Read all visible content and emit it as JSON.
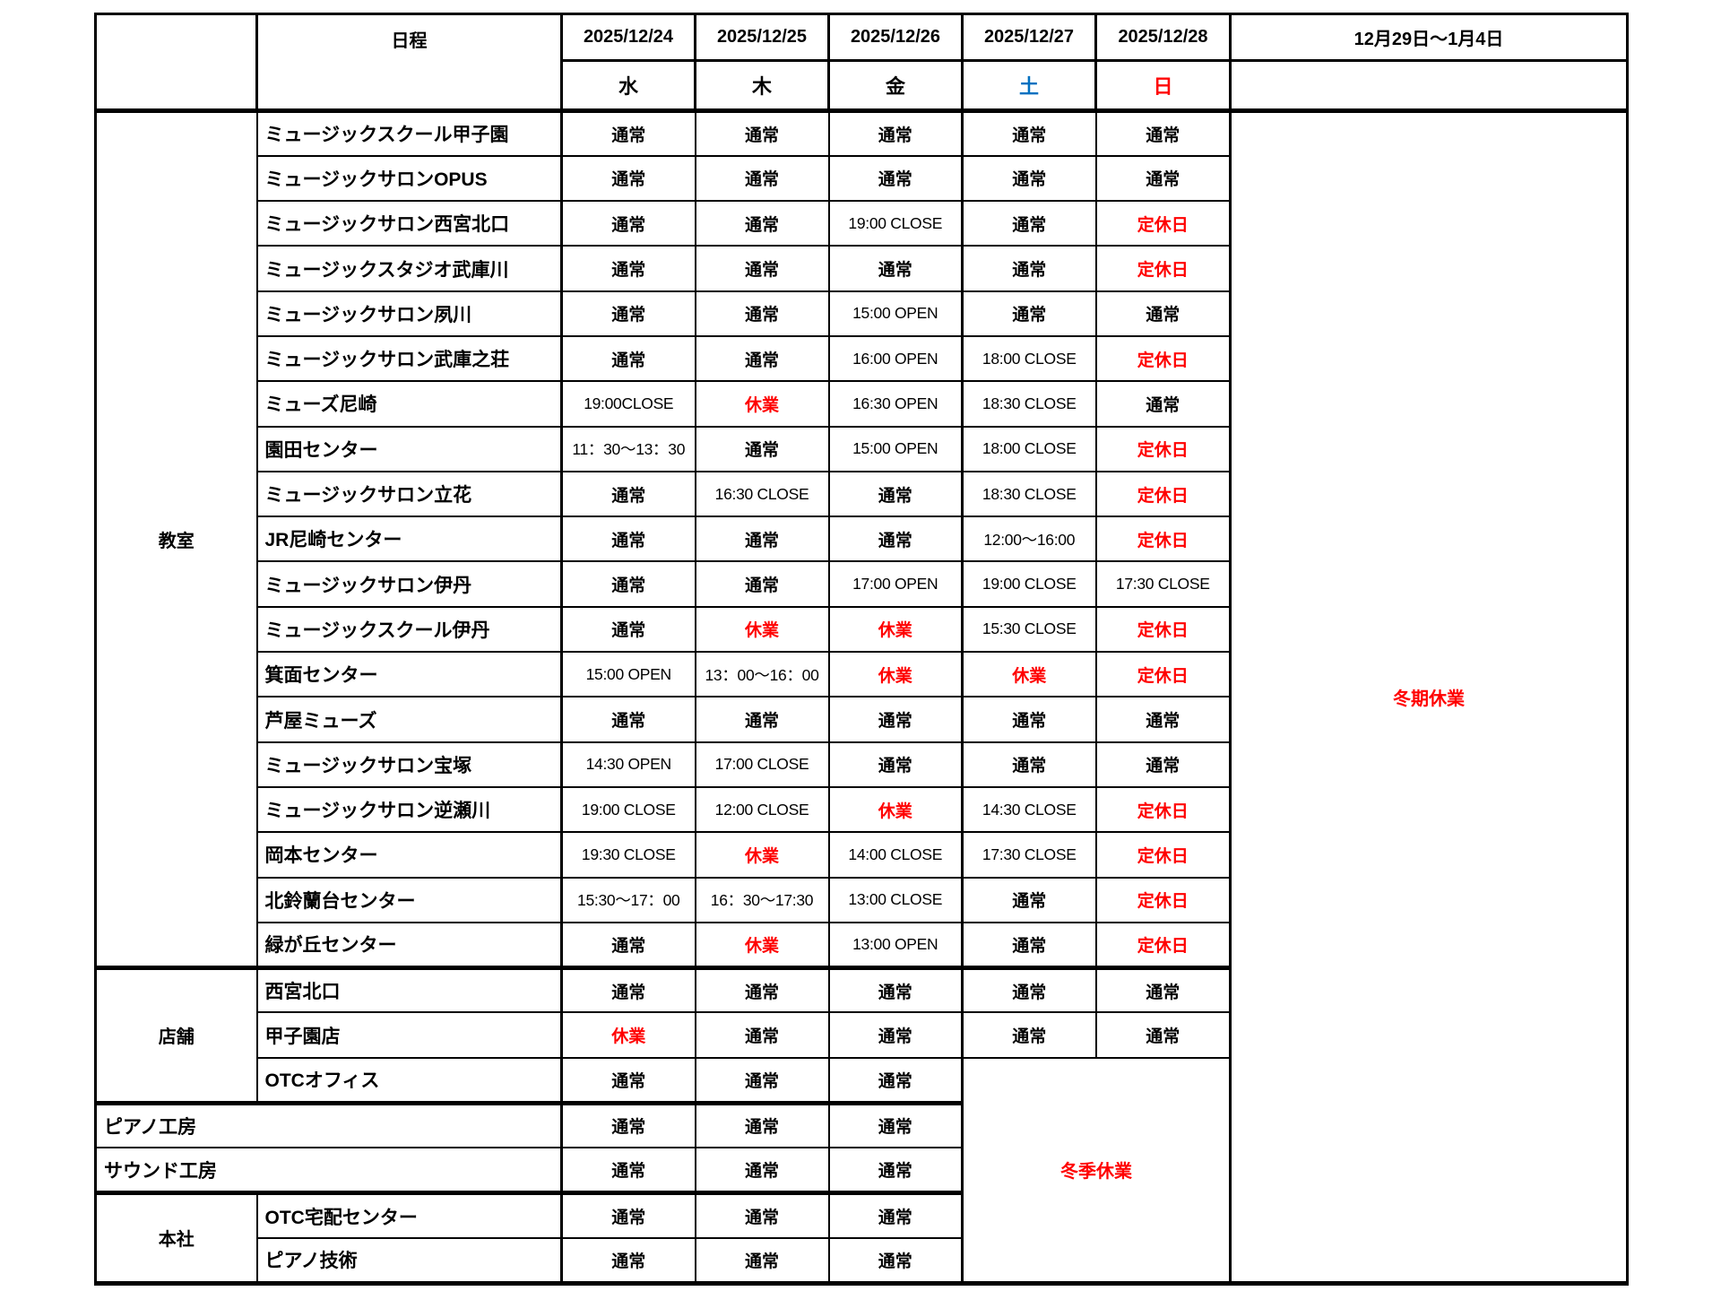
{
  "colors": {
    "closed_red": "#FF0000",
    "saturday_blue": "#0070C0",
    "text_black": "#000000"
  },
  "header": {
    "schedule_label": "日程",
    "dates": [
      {
        "date": "2025/12/24",
        "day": "水",
        "day_color": "#000000"
      },
      {
        "date": "2025/12/25",
        "day": "木",
        "day_color": "#000000"
      },
      {
        "date": "2025/12/26",
        "day": "金",
        "day_color": "#000000"
      },
      {
        "date": "2025/12/27",
        "day": "土",
        "day_color": "#0070C0"
      },
      {
        "date": "2025/12/28",
        "day": "日",
        "day_color": "#FF0000"
      }
    ],
    "period_label": "12月29日～1月4日"
  },
  "period_column_note": {
    "text": "冬期休業",
    "color": "#FF0000"
  },
  "winter_closure_note": {
    "text": "冬季休業",
    "color": "#FF0000"
  },
  "groups": [
    {
      "label": "教室",
      "rows": [
        {
          "name": "ミュージックスクール甲子園",
          "values": [
            {
              "t": "通常"
            },
            {
              "t": "通常"
            },
            {
              "t": "通常"
            },
            {
              "t": "通常"
            },
            {
              "t": "通常"
            }
          ]
        },
        {
          "name": "ミュージックサロンOPUS",
          "values": [
            {
              "t": "通常"
            },
            {
              "t": "通常"
            },
            {
              "t": "通常"
            },
            {
              "t": "通常"
            },
            {
              "t": "通常"
            }
          ]
        },
        {
          "name": "ミュージックサロン西宮北口",
          "values": [
            {
              "t": "通常"
            },
            {
              "t": "通常"
            },
            {
              "t": "19:00 CLOSE"
            },
            {
              "t": "通常"
            },
            {
              "t": "定休日",
              "r": true
            }
          ]
        },
        {
          "name": "ミュージックスタジオ武庫川",
          "values": [
            {
              "t": "通常"
            },
            {
              "t": "通常"
            },
            {
              "t": "通常"
            },
            {
              "t": "通常"
            },
            {
              "t": "定休日",
              "r": true
            }
          ]
        },
        {
          "name": "ミュージックサロン夙川",
          "values": [
            {
              "t": "通常"
            },
            {
              "t": "通常"
            },
            {
              "t": "15:00 OPEN"
            },
            {
              "t": "通常"
            },
            {
              "t": "通常"
            }
          ]
        },
        {
          "name": "ミュージックサロン武庫之荘",
          "values": [
            {
              "t": "通常"
            },
            {
              "t": "通常"
            },
            {
              "t": "16:00 OPEN"
            },
            {
              "t": "18:00 CLOSE"
            },
            {
              "t": "定休日",
              "r": true
            }
          ]
        },
        {
          "name": "ミューズ尼崎",
          "values": [
            {
              "t": "19:00CLOSE"
            },
            {
              "t": "休業",
              "r": true
            },
            {
              "t": "16:30 OPEN"
            },
            {
              "t": "18:30 CLOSE"
            },
            {
              "t": "通常"
            }
          ]
        },
        {
          "name": "園田センター",
          "values": [
            {
              "t": "11：30～13：30"
            },
            {
              "t": "通常"
            },
            {
              "t": "15:00 OPEN"
            },
            {
              "t": "18:00 CLOSE"
            },
            {
              "t": "定休日",
              "r": true
            }
          ]
        },
        {
          "name": "ミュージックサロン立花",
          "values": [
            {
              "t": "通常"
            },
            {
              "t": "16:30 CLOSE"
            },
            {
              "t": "通常"
            },
            {
              "t": "18:30 CLOSE"
            },
            {
              "t": "定休日",
              "r": true
            }
          ]
        },
        {
          "name": "JR尼崎センター",
          "values": [
            {
              "t": "通常"
            },
            {
              "t": "通常"
            },
            {
              "t": "通常"
            },
            {
              "t": "12:00～16:00"
            },
            {
              "t": "定休日",
              "r": true
            }
          ]
        },
        {
          "name": "ミュージックサロン伊丹",
          "values": [
            {
              "t": "通常"
            },
            {
              "t": "通常"
            },
            {
              "t": "17:00 OPEN"
            },
            {
              "t": "19:00 CLOSE"
            },
            {
              "t": "17:30 CLOSE"
            }
          ]
        },
        {
          "name": "ミュージックスクール伊丹",
          "values": [
            {
              "t": "通常"
            },
            {
              "t": "休業",
              "r": true
            },
            {
              "t": "休業",
              "r": true
            },
            {
              "t": "15:30 CLOSE"
            },
            {
              "t": "定休日",
              "r": true
            }
          ]
        },
        {
          "name": "箕面センター",
          "values": [
            {
              "t": "15:00 OPEN"
            },
            {
              "t": "13：00～16：00"
            },
            {
              "t": "休業",
              "r": true
            },
            {
              "t": "休業",
              "r": true
            },
            {
              "t": "定休日",
              "r": true
            }
          ]
        },
        {
          "name": "芦屋ミューズ",
          "values": [
            {
              "t": "通常"
            },
            {
              "t": "通常"
            },
            {
              "t": "通常"
            },
            {
              "t": "通常"
            },
            {
              "t": "通常"
            }
          ]
        },
        {
          "name": "ミュージックサロン宝塚",
          "values": [
            {
              "t": "14:30 OPEN"
            },
            {
              "t": "17:00 CLOSE"
            },
            {
              "t": "通常"
            },
            {
              "t": "通常"
            },
            {
              "t": "通常"
            }
          ]
        },
        {
          "name": "ミュージックサロン逆瀬川",
          "values": [
            {
              "t": "19:00 CLOSE"
            },
            {
              "t": "12:00 CLOSE"
            },
            {
              "t": "休業",
              "r": true
            },
            {
              "t": "14:30 CLOSE"
            },
            {
              "t": "定休日",
              "r": true
            }
          ]
        },
        {
          "name": "岡本センター",
          "values": [
            {
              "t": "19:30 CLOSE"
            },
            {
              "t": "休業",
              "r": true
            },
            {
              "t": "14:00 CLOSE"
            },
            {
              "t": "17:30 CLOSE"
            },
            {
              "t": "定休日",
              "r": true
            }
          ]
        },
        {
          "name": "北鈴蘭台センター",
          "values": [
            {
              "t": "15:30～17：00"
            },
            {
              "t": "16：30～17:30"
            },
            {
              "t": "13:00 CLOSE"
            },
            {
              "t": "通常"
            },
            {
              "t": "定休日",
              "r": true
            }
          ]
        },
        {
          "name": "緑が丘センター",
          "values": [
            {
              "t": "通常"
            },
            {
              "t": "休業",
              "r": true
            },
            {
              "t": "13:00 OPEN"
            },
            {
              "t": "通常"
            },
            {
              "t": "定休日",
              "r": true
            }
          ]
        }
      ]
    },
    {
      "label": "店舗",
      "rows": [
        {
          "name": "西宮北口",
          "values": [
            {
              "t": "通常"
            },
            {
              "t": "通常"
            },
            {
              "t": "通常"
            },
            {
              "t": "通常"
            },
            {
              "t": "通常"
            }
          ]
        },
        {
          "name": "甲子園店",
          "values": [
            {
              "t": "休業",
              "r": true
            },
            {
              "t": "通常"
            },
            {
              "t": "通常"
            },
            {
              "t": "通常"
            },
            {
              "t": "通常"
            }
          ]
        },
        {
          "name": "OTCオフィス",
          "values": [
            {
              "t": "通常"
            },
            {
              "t": "通常"
            },
            {
              "t": "通常"
            }
          ],
          "winter_merge_start": true
        }
      ]
    },
    {
      "label": null,
      "rows": [
        {
          "name": "ピアノ工房",
          "values": [
            {
              "t": "通常"
            },
            {
              "t": "通常"
            },
            {
              "t": "通常"
            }
          ]
        }
      ]
    },
    {
      "label": null,
      "rows": [
        {
          "name": "サウンド工房",
          "values": [
            {
              "t": "通常"
            },
            {
              "t": "通常"
            },
            {
              "t": "通常"
            }
          ]
        }
      ]
    },
    {
      "label": "本社",
      "rows": [
        {
          "name": "OTC宅配センター",
          "values": [
            {
              "t": "通常"
            },
            {
              "t": "通常"
            },
            {
              "t": "通常"
            }
          ]
        },
        {
          "name": "ピアノ技術",
          "values": [
            {
              "t": "通常"
            },
            {
              "t": "通常"
            },
            {
              "t": "通常"
            }
          ]
        }
      ]
    }
  ]
}
